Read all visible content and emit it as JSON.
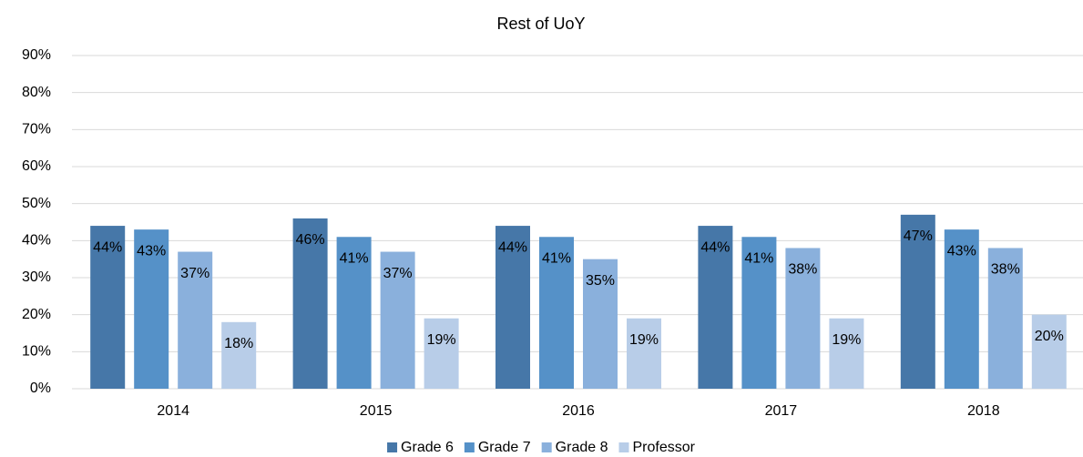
{
  "chart_data": {
    "type": "bar",
    "title": "Rest of UoY",
    "categories": [
      "2014",
      "2015",
      "2016",
      "2017",
      "2018"
    ],
    "series": [
      {
        "name": "Grade 6",
        "color": "#4677a8",
        "values": [
          44,
          46,
          44,
          44,
          47
        ],
        "value_labels": [
          "44%",
          "46%",
          "44%",
          "44%",
          "47%"
        ]
      },
      {
        "name": "Grade 7",
        "color": "#5591c8",
        "values": [
          43,
          41,
          41,
          41,
          43
        ],
        "value_labels": [
          "43%",
          "41%",
          "41%",
          "41%",
          "43%"
        ]
      },
      {
        "name": "Grade 8",
        "color": "#8ab0dc",
        "values": [
          37,
          37,
          35,
          38,
          38
        ],
        "value_labels": [
          "37%",
          "37%",
          "35%",
          "38%",
          "38%"
        ]
      },
      {
        "name": "Professor",
        "color": "#b8cde8",
        "values": [
          18,
          19,
          19,
          19,
          20
        ],
        "value_labels": [
          "18%",
          "19%",
          "19%",
          "19%",
          "20%"
        ]
      }
    ],
    "ylim": [
      0,
      90
    ],
    "yticks": [
      {
        "value": 0,
        "label": "0%"
      },
      {
        "value": 10,
        "label": "10%"
      },
      {
        "value": 20,
        "label": "20%"
      },
      {
        "value": 30,
        "label": "30%"
      },
      {
        "value": 40,
        "label": "40%"
      },
      {
        "value": 50,
        "label": "50%"
      },
      {
        "value": 60,
        "label": "60%"
      },
      {
        "value": 70,
        "label": "70%"
      },
      {
        "value": 80,
        "label": "80%"
      },
      {
        "value": 90,
        "label": "90%"
      }
    ],
    "grid": true,
    "legend": "bottom"
  }
}
